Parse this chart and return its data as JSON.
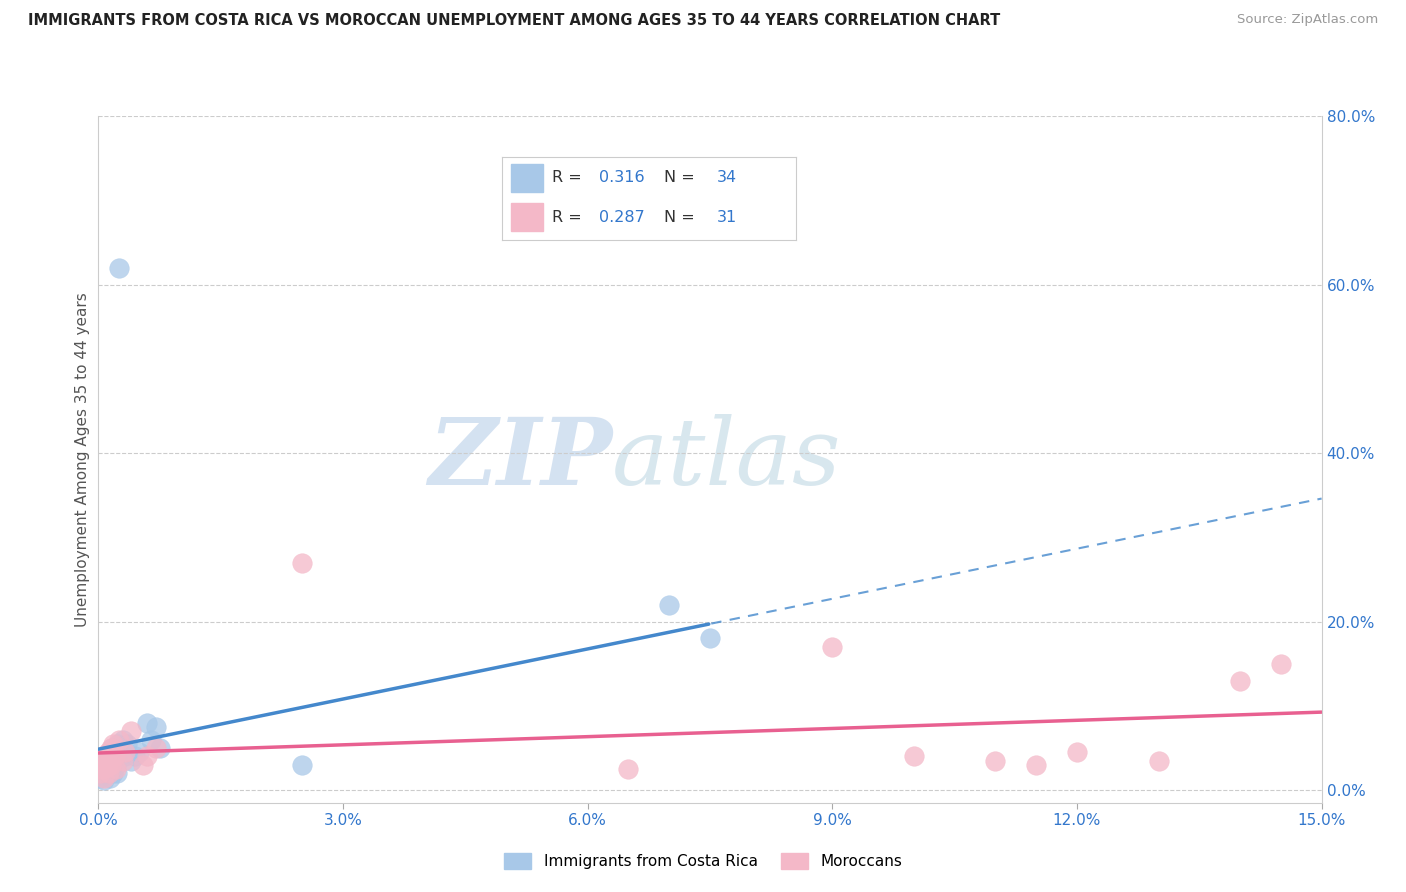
{
  "title": "IMMIGRANTS FROM COSTA RICA VS MOROCCAN UNEMPLOYMENT AMONG AGES 35 TO 44 YEARS CORRELATION CHART",
  "source": "Source: ZipAtlas.com",
  "ylabel": "Unemployment Among Ages 35 to 44 years",
  "legend_blue_R": "0.316",
  "legend_blue_N": "34",
  "legend_pink_R": "0.287",
  "legend_pink_N": "31",
  "legend_label_blue": "Immigrants from Costa Rica",
  "legend_label_pink": "Moroccans",
  "blue_color": "#a8c8e8",
  "pink_color": "#f4b8c8",
  "trend_blue_color": "#4488cc",
  "trend_pink_color": "#e86090",
  "watermark_zip": "ZIP",
  "watermark_atlas": "atlas",
  "blue_scatter_x": [
    0.0002,
    0.0003,
    0.0004,
    0.0005,
    0.0006,
    0.0007,
    0.0008,
    0.0009,
    0.001,
    0.0012,
    0.0013,
    0.0014,
    0.0015,
    0.0016,
    0.0017,
    0.0018,
    0.002,
    0.0022,
    0.0023,
    0.0024,
    0.0025,
    0.003,
    0.0032,
    0.0035,
    0.004,
    0.0045,
    0.005,
    0.006,
    0.0065,
    0.007,
    0.0075,
    0.025,
    0.07,
    0.075
  ],
  "blue_scatter_y": [
    1.5,
    2.0,
    1.8,
    2.5,
    3.0,
    1.2,
    2.8,
    2.0,
    3.5,
    2.2,
    4.0,
    1.5,
    3.0,
    2.5,
    5.0,
    2.0,
    4.5,
    3.0,
    2.0,
    5.5,
    62.0,
    6.0,
    4.0,
    5.5,
    3.5,
    4.0,
    4.5,
    8.0,
    6.0,
    7.5,
    5.0,
    3.0,
    22.0,
    18.0
  ],
  "pink_scatter_x": [
    0.0002,
    0.0004,
    0.0005,
    0.0006,
    0.0007,
    0.0008,
    0.001,
    0.0012,
    0.0013,
    0.0015,
    0.0016,
    0.0018,
    0.002,
    0.0022,
    0.0025,
    0.003,
    0.0032,
    0.004,
    0.0055,
    0.006,
    0.007,
    0.025,
    0.065,
    0.09,
    0.1,
    0.11,
    0.115,
    0.12,
    0.13,
    0.14,
    0.145
  ],
  "pink_scatter_y": [
    2.0,
    3.5,
    2.5,
    4.0,
    1.5,
    3.0,
    2.8,
    4.5,
    2.0,
    5.0,
    3.0,
    5.5,
    4.0,
    2.5,
    6.0,
    3.5,
    4.5,
    7.0,
    3.0,
    4.0,
    5.0,
    27.0,
    2.5,
    17.0,
    4.0,
    3.5,
    3.0,
    4.5,
    3.5,
    13.0,
    15.0
  ],
  "xmin": 0.0,
  "xmax": 0.15,
  "ymin": -1.5,
  "ymax": 80.0,
  "ytick_vals": [
    0.0,
    20.0,
    40.0,
    60.0,
    80.0
  ],
  "xtick_vals": [
    0.0,
    0.03,
    0.06,
    0.09,
    0.12,
    0.15
  ],
  "trend_blue_x_solid_end": 0.075,
  "trend_blue_x_dash_start": 0.075
}
